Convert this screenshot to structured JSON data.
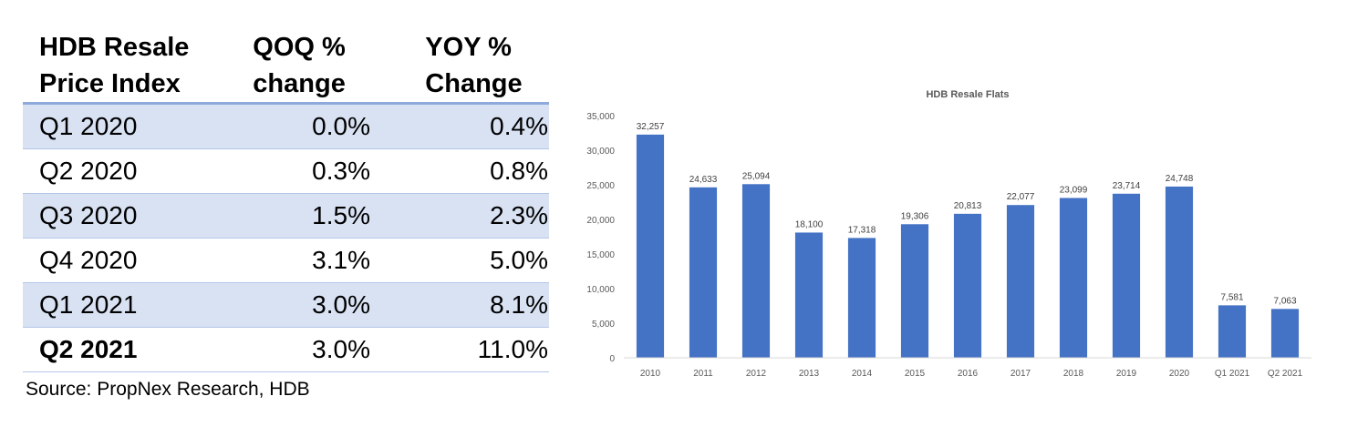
{
  "table": {
    "headers": [
      "HDB Resale\nPrice Index",
      "QOQ %\nchange",
      "YOY %\nChange"
    ],
    "rows": [
      {
        "period": "Q1 2020",
        "qoq": "0.0%",
        "yoy": "0.4%",
        "bold": false
      },
      {
        "period": "Q2 2020",
        "qoq": "0.3%",
        "yoy": "0.8%",
        "bold": false
      },
      {
        "period": "Q3 2020",
        "qoq": "1.5%",
        "yoy": "2.3%",
        "bold": false
      },
      {
        "period": "Q4 2020",
        "qoq": "3.1%",
        "yoy": "5.0%",
        "bold": false
      },
      {
        "period": "Q1 2021",
        "qoq": "3.0%",
        "yoy": "8.1%",
        "bold": false
      },
      {
        "period": "Q2 2021",
        "qoq": "3.0%",
        "yoy": "11.0%",
        "bold": true
      }
    ],
    "source": "Source: PropNex Research, HDB"
  },
  "chart_data": {
    "type": "bar",
    "title": "HDB Resale Flats",
    "categories": [
      "2010",
      "2011",
      "2012",
      "2013",
      "2014",
      "2015",
      "2016",
      "2017",
      "2018",
      "2019",
      "2020",
      "Q1 2021",
      "Q2 2021"
    ],
    "values": [
      32257,
      24633,
      25094,
      18100,
      17318,
      19306,
      20813,
      22077,
      23099,
      23714,
      24748,
      7581,
      7063
    ],
    "value_labels": [
      "32,257",
      "24,633",
      "25,094",
      "18,100",
      "17,318",
      "19,306",
      "20,813",
      "22,077",
      "23,099",
      "23,714",
      "24,748",
      "7,581",
      "7,063"
    ],
    "ylim": [
      0,
      35000
    ],
    "yticks": [
      0,
      5000,
      10000,
      15000,
      20000,
      25000,
      30000,
      35000
    ],
    "ytick_labels": [
      "0",
      "5,000",
      "10,000",
      "15,000",
      "20,000",
      "25,000",
      "30,000",
      "35,000"
    ],
    "xlabel": "",
    "ylabel": "",
    "grid": false,
    "legend": "none",
    "bar_color": "#4472c4"
  }
}
